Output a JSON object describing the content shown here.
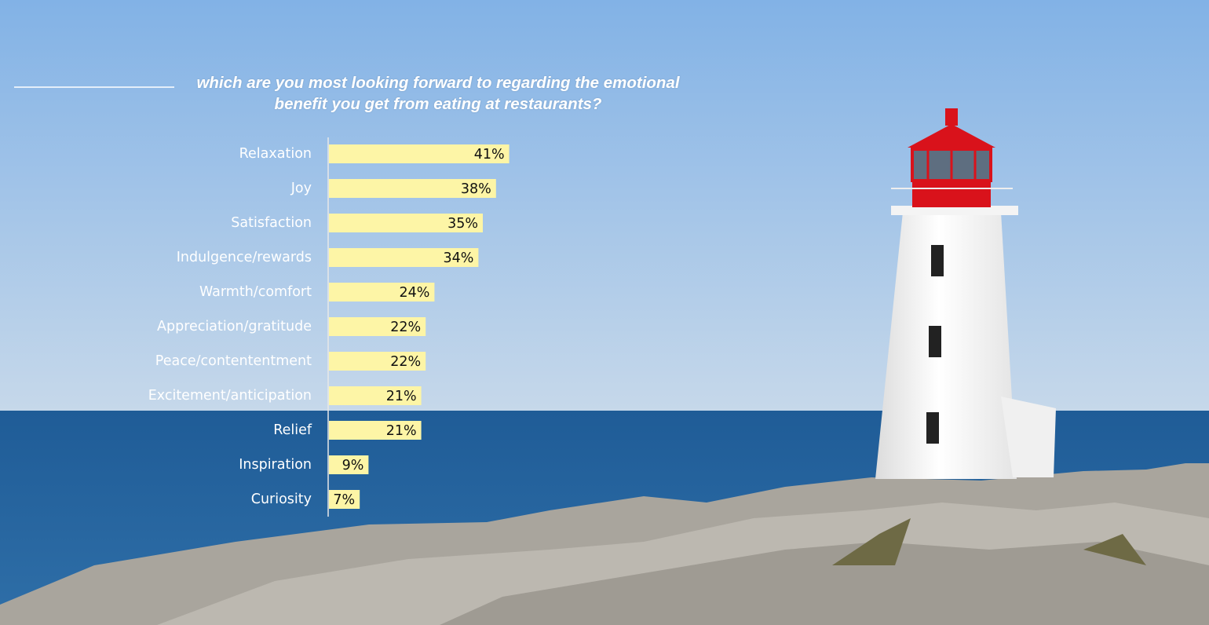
{
  "chart_data": {
    "type": "bar",
    "orientation": "horizontal",
    "title": "which are you most looking forward to regarding the emotional benefit you get from eating at restaurants?",
    "categories": [
      "Relaxation",
      "Joy",
      "Satisfaction",
      "Indulgence/rewards",
      "Warmth/comfort",
      "Appreciation/gratitude",
      "Peace/contententment",
      "Excitement/anticipation",
      "Relief",
      "Inspiration",
      "Curiosity"
    ],
    "values": [
      41,
      38,
      35,
      34,
      24,
      22,
      22,
      21,
      21,
      9,
      7
    ],
    "value_labels": [
      "41%",
      "38%",
      "35%",
      "34%",
      "24%",
      "22%",
      "22%",
      "21%",
      "21%",
      "9%",
      "7%"
    ],
    "color": "#fdf5a6"
  }
}
